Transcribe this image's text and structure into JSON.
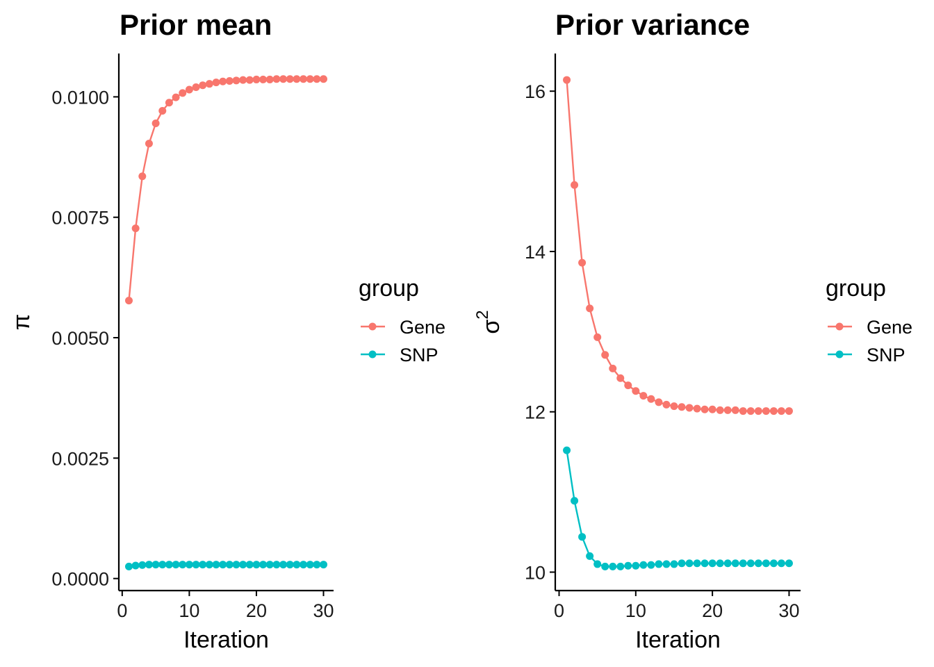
{
  "chart_data": [
    {
      "type": "line",
      "title": "Prior mean",
      "xlabel": "Iteration",
      "ylabel": "π",
      "ylabel_superscript": "",
      "xlim": [
        -0.5,
        31.5
      ],
      "ylim": [
        -0.00025,
        0.0109
      ],
      "xticks": [
        0,
        10,
        20,
        30
      ],
      "xtick_labels": [
        "0",
        "10",
        "20",
        "30"
      ],
      "yticks": [
        0.0,
        0.0025,
        0.005,
        0.0075,
        0.01
      ],
      "ytick_labels": [
        "0.0000",
        "0.0025",
        "0.0050",
        "0.0075",
        "0.0100"
      ],
      "legend_title": "group",
      "x": [
        1,
        2,
        3,
        4,
        5,
        6,
        7,
        8,
        9,
        10,
        11,
        12,
        13,
        14,
        15,
        16,
        17,
        18,
        19,
        20,
        21,
        22,
        23,
        24,
        25,
        26,
        27,
        28,
        29,
        30
      ],
      "series": [
        {
          "name": "Gene",
          "color": "#F8766D",
          "values": [
            0.00577,
            0.00727,
            0.00835,
            0.00903,
            0.00945,
            0.00971,
            0.00988,
            0.00999,
            0.01008,
            0.01015,
            0.0102,
            0.01024,
            0.01027,
            0.0103,
            0.01032,
            0.01033,
            0.01034,
            0.01035,
            0.01035,
            0.01036,
            0.01036,
            0.01036,
            0.01037,
            0.01037,
            0.01037,
            0.01037,
            0.01037,
            0.01037,
            0.01037,
            0.01037
          ]
        },
        {
          "name": "SNP",
          "color": "#00BFC4",
          "values": [
            0.00025,
            0.00027,
            0.00028,
            0.00029,
            0.00029,
            0.00029,
            0.00029,
            0.00029,
            0.00029,
            0.00029,
            0.00029,
            0.00029,
            0.00029,
            0.00029,
            0.00029,
            0.00029,
            0.00029,
            0.00029,
            0.00029,
            0.00029,
            0.00029,
            0.00029,
            0.00029,
            0.00029,
            0.00029,
            0.00029,
            0.00029,
            0.00029,
            0.00029,
            0.00029
          ]
        }
      ]
    },
    {
      "type": "line",
      "title": "Prior variance",
      "xlabel": "Iteration",
      "ylabel": "σ",
      "ylabel_superscript": "2",
      "xlim": [
        -0.5,
        31.5
      ],
      "ylim": [
        9.77,
        16.47
      ],
      "xticks": [
        0,
        10,
        20,
        30
      ],
      "xtick_labels": [
        "0",
        "10",
        "20",
        "30"
      ],
      "yticks": [
        10,
        12,
        14,
        16
      ],
      "ytick_labels": [
        "10",
        "12",
        "14",
        "16"
      ],
      "legend_title": "group",
      "x": [
        1,
        2,
        3,
        4,
        5,
        6,
        7,
        8,
        9,
        10,
        11,
        12,
        13,
        14,
        15,
        16,
        17,
        18,
        19,
        20,
        21,
        22,
        23,
        24,
        25,
        26,
        27,
        28,
        29,
        30
      ],
      "series": [
        {
          "name": "Gene",
          "color": "#F8766D",
          "values": [
            16.14,
            14.83,
            13.86,
            13.29,
            12.93,
            12.71,
            12.54,
            12.42,
            12.33,
            12.26,
            12.2,
            12.16,
            12.12,
            12.09,
            12.07,
            12.06,
            12.05,
            12.04,
            12.03,
            12.03,
            12.02,
            12.02,
            12.02,
            12.01,
            12.01,
            12.01,
            12.01,
            12.01,
            12.01,
            12.01
          ]
        },
        {
          "name": "SNP",
          "color": "#00BFC4",
          "values": [
            11.52,
            10.89,
            10.44,
            10.2,
            10.1,
            10.07,
            10.07,
            10.07,
            10.08,
            10.08,
            10.09,
            10.09,
            10.1,
            10.1,
            10.1,
            10.11,
            10.11,
            10.11,
            10.11,
            10.11,
            10.11,
            10.11,
            10.11,
            10.11,
            10.11,
            10.11,
            10.11,
            10.11,
            10.11,
            10.11
          ]
        }
      ]
    }
  ]
}
